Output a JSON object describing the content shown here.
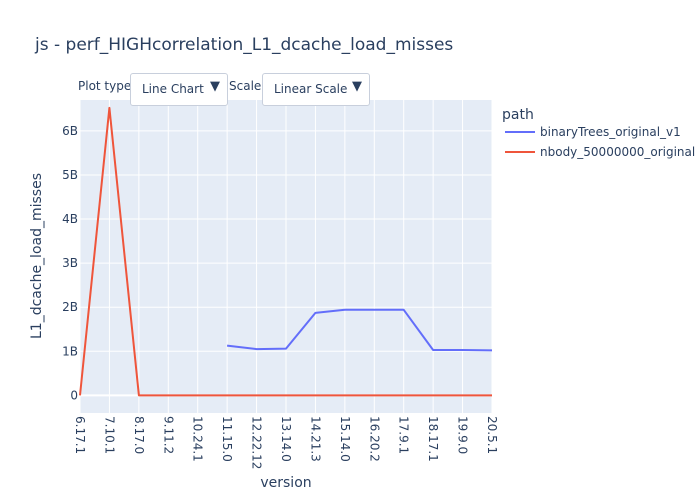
{
  "chart_data": {
    "type": "line",
    "title": "js - perf_HIGHcorrelation_L1_dcache_load_misses",
    "xlabel": "version",
    "ylabel": "L1_dcache_load_misses",
    "x_ticks": [
      "6.17.1",
      "7.10.1",
      "8.17.0",
      "9.11.2",
      "10.24.1",
      "11.15.0",
      "12.22.12",
      "13.14.0",
      "14.21.3",
      "15.14.0",
      "16.20.2",
      "17.9.1",
      "18.17.1",
      "19.9.0",
      "20.5.1"
    ],
    "y_ticks": [
      {
        "value": 0,
        "label": "0"
      },
      {
        "value": 1000000000,
        "label": "1B"
      },
      {
        "value": 2000000000,
        "label": "2B"
      },
      {
        "value": 3000000000,
        "label": "3B"
      },
      {
        "value": 4000000000,
        "label": "4B"
      },
      {
        "value": 5000000000,
        "label": "5B"
      },
      {
        "value": 6000000000,
        "label": "6B"
      }
    ],
    "ylim": [
      -400000000,
      6700000000
    ],
    "grid": true,
    "legend_title": "path",
    "legend_placement": "top-right",
    "series": [
      {
        "name": "binaryTrees_original_v1",
        "color": "#636efa",
        "points": [
          {
            "x": "11.15.0",
            "y": 1130000000
          },
          {
            "x": "12.22.12",
            "y": 1050000000
          },
          {
            "x": "13.14.0",
            "y": 1060000000
          },
          {
            "x": "14.21.3",
            "y": 1870000000
          },
          {
            "x": "15.14.0",
            "y": 1940000000
          },
          {
            "x": "16.20.2",
            "y": 1940000000
          },
          {
            "x": "17.9.1",
            "y": 1940000000
          },
          {
            "x": "18.17.1",
            "y": 1030000000
          },
          {
            "x": "19.9.0",
            "y": 1030000000
          },
          {
            "x": "20.5.1",
            "y": 1020000000
          }
        ]
      },
      {
        "name": "nbody_50000000_original",
        "color": "#ef553b",
        "points": [
          {
            "x": "6.17.1",
            "y": 0
          },
          {
            "x": "7.10.1",
            "y": 6520000000
          },
          {
            "x": "8.17.0",
            "y": 0
          },
          {
            "x": "9.11.2",
            "y": 0
          },
          {
            "x": "10.24.1",
            "y": 0
          },
          {
            "x": "11.15.0",
            "y": 0
          },
          {
            "x": "12.22.12",
            "y": 0
          },
          {
            "x": "13.14.0",
            "y": 0
          },
          {
            "x": "14.21.3",
            "y": 0
          },
          {
            "x": "15.14.0",
            "y": 0
          },
          {
            "x": "16.20.2",
            "y": 0
          },
          {
            "x": "17.9.1",
            "y": 0
          },
          {
            "x": "18.17.1",
            "y": 0
          },
          {
            "x": "19.9.0",
            "y": 0
          },
          {
            "x": "20.5.1",
            "y": 0
          }
        ]
      }
    ]
  },
  "controls": {
    "plot_type_label": "Plot type:",
    "plot_type_value": "Line Chart",
    "scale_label": "Scale:",
    "scale_value": "Linear Scale",
    "arrow_glyph": "▼"
  },
  "colors": {
    "plot_background": "#e5ecf6",
    "grid": "#ffffff",
    "text": "#2a3f5f"
  }
}
